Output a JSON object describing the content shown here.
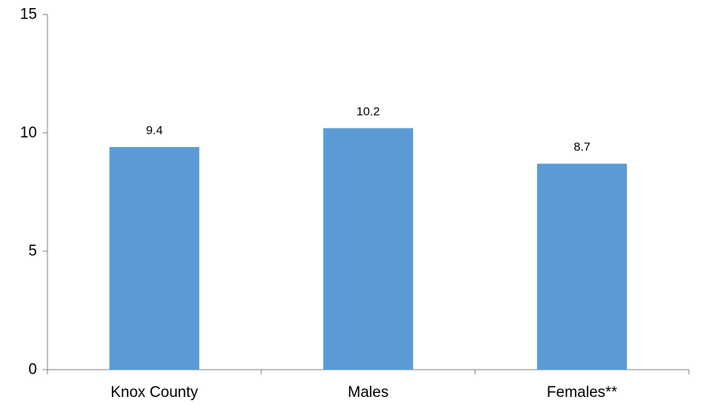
{
  "chart_data": {
    "type": "bar",
    "categories": [
      "Knox County",
      "Males",
      "Females**"
    ],
    "values": [
      9.4,
      10.2,
      8.7
    ],
    "data_labels": [
      "9.4",
      "10.2",
      "8.7"
    ],
    "title": "",
    "xlabel": "",
    "ylabel": "",
    "ylim": [
      0,
      15
    ],
    "yticks": [
      0,
      5,
      10,
      15
    ],
    "ytick_labels": [
      "0",
      "5",
      "10",
      "15"
    ],
    "grid": false,
    "legend": "none",
    "bar_color": "#5b9bd5",
    "axis_color": "#868686"
  }
}
